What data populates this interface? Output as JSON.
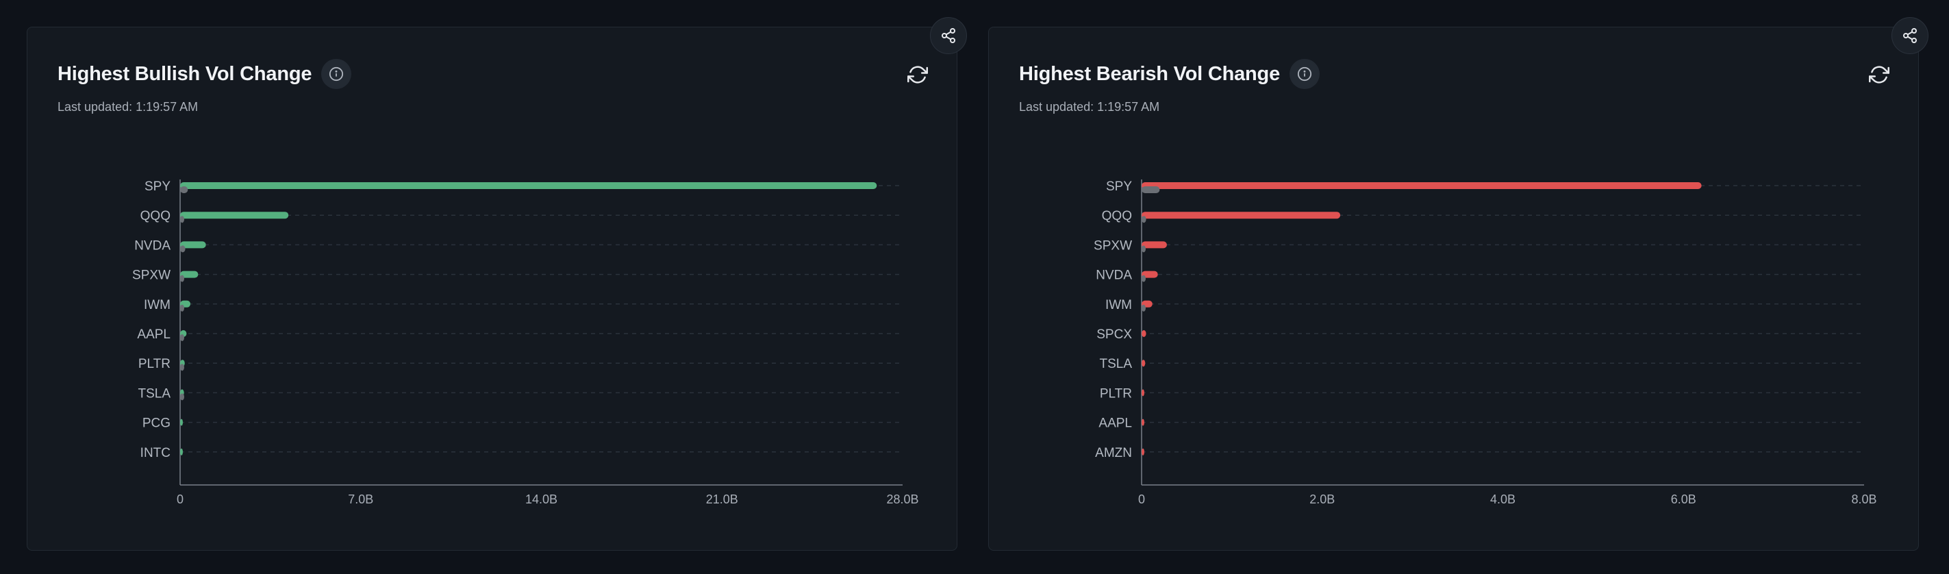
{
  "panels": [
    {
      "title": "Highest Bullish Vol Change",
      "last_updated": "Last updated: 1:19:57 AM",
      "icons": {
        "info": "info-icon",
        "refresh": "refresh-icon",
        "share": "share-icon"
      },
      "color": "#55b07f"
    },
    {
      "title": "Highest Bearish Vol Change",
      "last_updated": "Last updated: 1:19:57 AM",
      "icons": {
        "info": "info-icon",
        "refresh": "refresh-icon",
        "share": "share-icon"
      },
      "color": "#e05252"
    }
  ],
  "chart_data": [
    {
      "type": "bar",
      "orientation": "horizontal",
      "title": "Highest Bullish Vol Change",
      "xlabel": "",
      "ylabel": "",
      "categories": [
        "SPY",
        "QQQ",
        "NVDA",
        "SPXW",
        "IWM",
        "AAPL",
        "PLTR",
        "TSLA",
        "PCG",
        "INTC"
      ],
      "series": [
        {
          "values": [
            27.0,
            4.2,
            1.0,
            0.7,
            0.4,
            0.25,
            0.18,
            0.15,
            0.07,
            0.05
          ],
          "color": "#55b07f"
        },
        {
          "values": [
            0.3,
            0.08,
            0.2,
            0.05,
            0.02,
            0.02,
            0.01,
            0.01,
            0.0,
            0.0
          ],
          "color": "#6b6f75"
        }
      ],
      "x_ticks": [
        "0",
        "7.0B",
        "14.0B",
        "21.0B",
        "28.0B"
      ],
      "xlim": [
        0,
        28
      ],
      "grid": true
    },
    {
      "type": "bar",
      "orientation": "horizontal",
      "title": "Highest Bearish Vol Change",
      "xlabel": "",
      "ylabel": "",
      "categories": [
        "SPY",
        "QQQ",
        "SPXW",
        "NVDA",
        "IWM",
        "SPCX",
        "TSLA",
        "PLTR",
        "AAPL",
        "AMZN"
      ],
      "series": [
        {
          "values": [
            6.2,
            2.2,
            0.28,
            0.18,
            0.12,
            0.05,
            0.04,
            0.03,
            0.025,
            0.02
          ],
          "color": "#e05252"
        },
        {
          "values": [
            0.2,
            0.05,
            0.01,
            0.02,
            0.01,
            0.0,
            0.0,
            0.0,
            0.0,
            0.0
          ],
          "color": "#6b6f75"
        }
      ],
      "x_ticks": [
        "0",
        "2.0B",
        "4.0B",
        "6.0B",
        "8.0B"
      ],
      "xlim": [
        0,
        8
      ],
      "grid": true
    }
  ]
}
